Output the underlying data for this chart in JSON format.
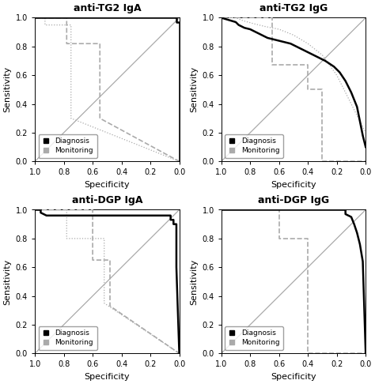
{
  "panels": [
    {
      "title": "anti-TG2 IgA",
      "diag_fpr": [
        1.0,
        0.04,
        0.04,
        0.02,
        0.02,
        0.0,
        0.0
      ],
      "diag_tpr": [
        1.0,
        1.0,
        1.0,
        1.0,
        0.97,
        0.97,
        0.0
      ],
      "mono_fpr": [
        1.0,
        0.78,
        0.78,
        0.55,
        0.55,
        0.0
      ],
      "mono_tpr": [
        1.0,
        1.0,
        0.82,
        0.82,
        0.3,
        0.0
      ],
      "mono_dot_fpr": [
        1.0,
        0.93,
        0.93,
        0.75,
        0.75,
        0.0
      ],
      "mono_dot_tpr": [
        1.0,
        1.0,
        0.95,
        0.95,
        0.3,
        0.0
      ]
    },
    {
      "title": "anti-TG2 IgG",
      "diag_fpr": [
        1.0,
        0.9,
        0.88,
        0.84,
        0.8,
        0.76,
        0.72,
        0.68,
        0.6,
        0.52,
        0.44,
        0.36,
        0.28,
        0.22,
        0.18,
        0.14,
        0.1,
        0.06,
        0.04,
        0.02,
        0.0
      ],
      "diag_tpr": [
        1.0,
        0.97,
        0.95,
        0.93,
        0.92,
        0.9,
        0.88,
        0.86,
        0.84,
        0.82,
        0.78,
        0.74,
        0.7,
        0.66,
        0.62,
        0.56,
        0.48,
        0.38,
        0.28,
        0.18,
        0.1
      ],
      "diag_dot_fpr": [
        1.0,
        0.9,
        0.85,
        0.78,
        0.7,
        0.6,
        0.5,
        0.4,
        0.3,
        0.2,
        0.1,
        0.0
      ],
      "diag_dot_tpr": [
        1.0,
        1.0,
        0.98,
        0.96,
        0.94,
        0.92,
        0.88,
        0.82,
        0.74,
        0.6,
        0.4,
        0.2
      ],
      "mono_fpr": [
        1.0,
        0.65,
        0.65,
        0.4,
        0.4,
        0.3,
        0.3,
        0.0
      ],
      "mono_tpr": [
        1.0,
        1.0,
        0.67,
        0.67,
        0.5,
        0.5,
        0.0,
        0.0
      ]
    },
    {
      "title": "anti-DGP IgA",
      "diag_fpr": [
        1.0,
        0.96,
        0.96,
        0.92,
        0.06,
        0.06,
        0.04,
        0.04,
        0.02,
        0.02,
        0.0
      ],
      "diag_tpr": [
        1.0,
        1.0,
        0.98,
        0.96,
        0.96,
        0.93,
        0.93,
        0.9,
        0.9,
        0.6,
        0.0
      ],
      "mono_fpr": [
        1.0,
        0.6,
        0.6,
        0.48,
        0.48,
        0.0
      ],
      "mono_dot_fpr": [
        1.0,
        0.78,
        0.78,
        0.52,
        0.52,
        0.0
      ],
      "mono_dot_tpr": [
        1.0,
        1.0,
        0.8,
        0.8,
        0.35,
        0.0
      ],
      "mono_tpr": [
        1.0,
        1.0,
        0.65,
        0.65,
        0.33,
        0.0
      ]
    },
    {
      "title": "anti-DGP IgG",
      "diag_fpr": [
        1.0,
        0.14,
        0.14,
        0.1,
        0.08,
        0.06,
        0.04,
        0.02,
        0.0
      ],
      "diag_tpr": [
        1.0,
        1.0,
        0.97,
        0.95,
        0.9,
        0.84,
        0.76,
        0.64,
        0.0
      ],
      "mono_fpr": [
        1.0,
        0.6,
        0.6,
        0.4,
        0.4,
        0.0
      ],
      "mono_tpr": [
        1.0,
        1.0,
        0.8,
        0.8,
        0.0,
        0.0
      ]
    }
  ],
  "diag_color": "#000000",
  "mono_color": "#aaaaaa",
  "dot_color": "#aaaaaa",
  "diag_lw": 1.8,
  "mono_lw": 1.2,
  "dot_lw": 0.9,
  "ref_color": "#aaaaaa",
  "background": "#ffffff",
  "tick_vals": [
    1.0,
    0.8,
    0.6,
    0.4,
    0.2,
    0.0
  ]
}
